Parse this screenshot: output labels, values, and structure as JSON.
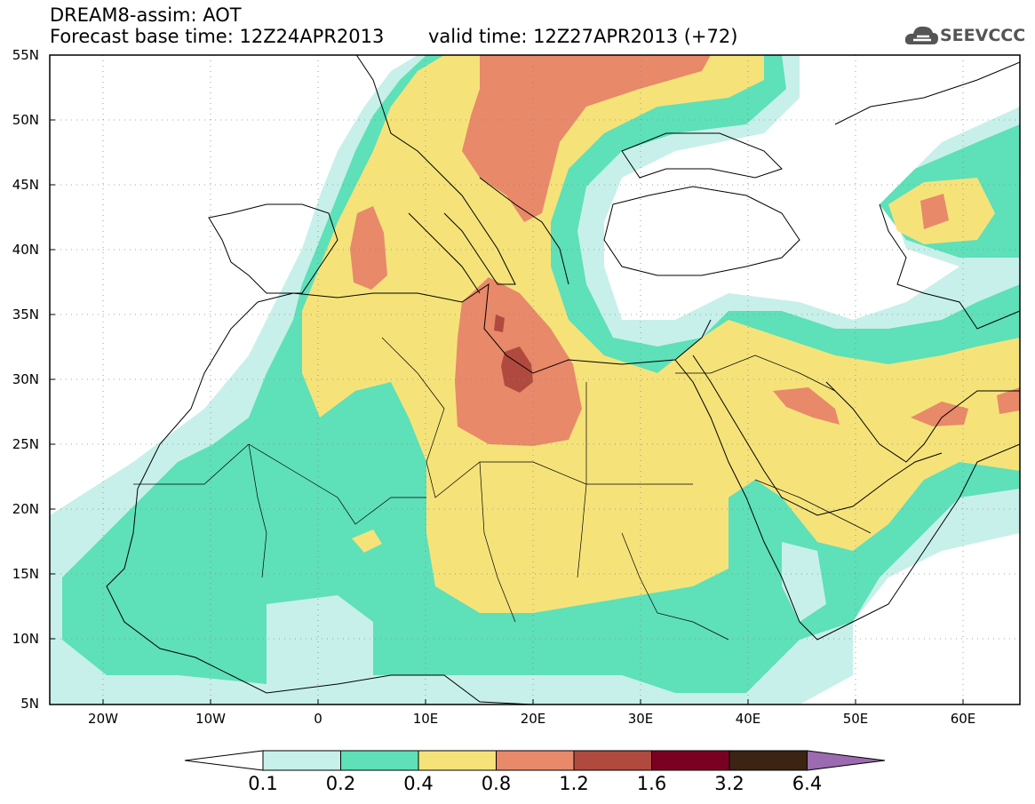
{
  "header": {
    "line1": "DREAM8-assim: AOT",
    "line2": "Forecast base time: 12Z24APR2013",
    "line3": "valid time: 12Z27APR2013 (+72)",
    "logo_text": "SEEVCCC"
  },
  "map": {
    "type": "heatmap",
    "lon_range": [
      -25,
      65
    ],
    "lat_range": [
      5,
      55
    ],
    "lat_ticks": [
      "55N",
      "50N",
      "45N",
      "40N",
      "35N",
      "30N",
      "25N",
      "20N",
      "15N",
      "10N",
      "5N"
    ],
    "lon_ticks": [
      "20W",
      "10W",
      "0",
      "10E",
      "20E",
      "30E",
      "40E",
      "50E",
      "60E"
    ]
  },
  "colorbar": {
    "labels": [
      "0.1",
      "0.2",
      "0.4",
      "0.8",
      "1.2",
      "1.6",
      "3.2",
      "6.4"
    ],
    "colors": [
      "#c7f0ea",
      "#5ee0b8",
      "#f5e37a",
      "#e8896a",
      "#b04a3e",
      "#7a0022",
      "#3b2414",
      "#9b6ab0"
    ]
  }
}
